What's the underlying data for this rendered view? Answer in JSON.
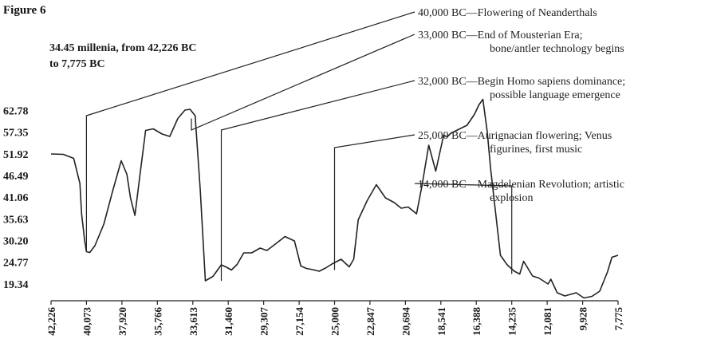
{
  "figure_label": "Figure 6",
  "chart_data": {
    "type": "line",
    "subtitle_lines": [
      "34.45 millenia, from 42,226 BC",
      "to 7,775 BC"
    ],
    "xlabel": "",
    "ylabel": "",
    "x_tick_labels": [
      "42,226",
      "40,073",
      "37,920",
      "35,766",
      "33,613",
      "31,460",
      "29,307",
      "27,154",
      "25,000",
      "22,847",
      "20,694",
      "18,541",
      "16,388",
      "14,235",
      "12,081",
      "9,928",
      "7,775"
    ],
    "y_tick_labels": [
      "62.78",
      "57.35",
      "51.92",
      "46.49",
      "41.06",
      "35.63",
      "30.20",
      "24.77",
      "19.34"
    ],
    "xlim": [
      42226,
      7775
    ],
    "ylim": [
      15.5,
      66.5
    ],
    "grid": false,
    "series": [
      {
        "x": [
          42226,
          41480,
          40850,
          40470,
          40370,
          40180,
          40073,
          39870,
          39560,
          39020,
          38490,
          37960,
          37620,
          37400,
          37130,
          36820,
          36480,
          36020,
          35480,
          35010,
          34520,
          34090,
          33780,
          33470,
          33160,
          32850,
          32390,
          31880,
          31560,
          31270,
          30920,
          30520,
          30040,
          29520,
          29110,
          28540,
          28010,
          27440,
          27050,
          26710,
          26330,
          25930,
          25550,
          25120,
          24600,
          24110,
          23840,
          23560,
          23020,
          22460,
          21910,
          21370,
          20950,
          20530,
          20020,
          19690,
          19280,
          18850,
          18370,
          18160,
          17930,
          17440,
          16950,
          16490,
          16230,
          15990,
          15720,
          15520,
          14920,
          14510,
          14080,
          13750,
          13510,
          12970,
          12590,
          12030,
          11860,
          11470,
          11010,
          10320,
          9850,
          9360,
          8890,
          8420,
          8150,
          7775
        ],
        "y": [
          51.9,
          51.8,
          50.8,
          44.5,
          36.9,
          30.1,
          27.4,
          27.2,
          28.9,
          34.3,
          42.5,
          50.2,
          46.8,
          40.9,
          36.5,
          46.8,
          57.8,
          58.2,
          56.9,
          56.3,
          60.8,
          62.9,
          63.1,
          61.5,
          42.9,
          20.1,
          21.2,
          24.1,
          23.5,
          22.8,
          24.2,
          27.1,
          27.1,
          28.3,
          27.7,
          29.5,
          31.2,
          30.1,
          23.8,
          23.2,
          22.9,
          22.5,
          23.3,
          24.4,
          25.5,
          23.6,
          25.5,
          35.4,
          40.2,
          44.2,
          40.9,
          39.7,
          38.3,
          38.6,
          36.9,
          43.9,
          54.1,
          47.6,
          56.6,
          56.2,
          57.1,
          58.1,
          59.1,
          61.9,
          64.2,
          65.6,
          57.4,
          48.2,
          26.5,
          24.1,
          22.5,
          21.8,
          25.0,
          21.3,
          20.8,
          19.3,
          20.5,
          17.1,
          16.3,
          17.1,
          15.8,
          16.2,
          17.5,
          22.3,
          26.0,
          26.5
        ]
      }
    ],
    "annotations": [
      {
        "x": 40073,
        "y_low": 27.4,
        "lines": [
          "40,000 BC—Flowering of Neanderthals"
        ]
      },
      {
        "x": 33700,
        "y_low": 60.8,
        "lines": [
          "33,000 BC—End of Mousterian Era;",
          "bone/antler technology begins"
        ]
      },
      {
        "x": 31880,
        "y_low": 20.1,
        "lines": [
          "32,000 BC—Begin Homo sapiens dominance;",
          "possible language emergence"
        ]
      },
      {
        "x": 25000,
        "y_low": 22.8,
        "lines": [
          "25,000 BC—Aurignacian flowering; Venus",
          "figurines, first music"
        ]
      },
      {
        "x": 14235,
        "y_low": 21.8,
        "lines": [
          "14,000 BC—Magdelenian Revolution; artistic",
          "explosion"
        ]
      }
    ]
  }
}
